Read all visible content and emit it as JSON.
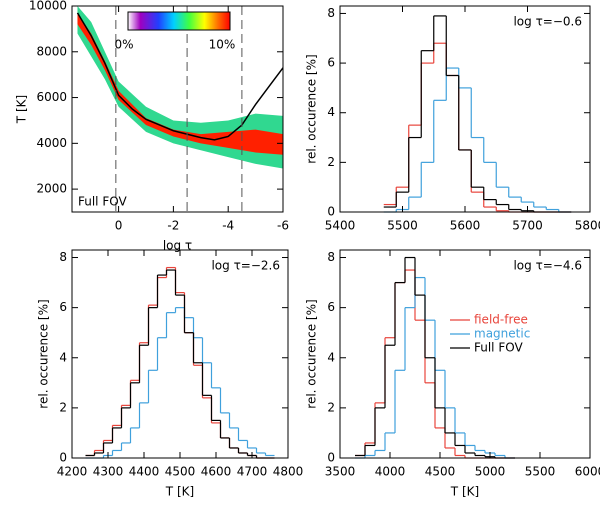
{
  "chart_data": [
    {
      "type": "density",
      "xlabel": "log τ",
      "ylabel": "T [K]",
      "annotation": "Full FOV",
      "xlim": [
        1.7,
        -6
      ],
      "ylim": [
        1000,
        10000
      ],
      "xticks": [
        0,
        -2,
        -4,
        -6
      ],
      "yticks": [
        2000,
        4000,
        6000,
        8000,
        10000
      ],
      "colorbar_labels": [
        "0%",
        "10%"
      ],
      "dashed_x": [
        0.1,
        -2.5,
        -4.5
      ],
      "band": {
        "x": [
          1.5,
          1,
          0.5,
          0,
          -1,
          -2,
          -3,
          -4,
          -5,
          -6
        ],
        "upper": [
          10000,
          9300,
          8000,
          6700,
          5600,
          5000,
          4900,
          5000,
          5300,
          5200
        ],
        "lower": [
          8800,
          7800,
          6800,
          5600,
          4500,
          4000,
          3700,
          3400,
          3100,
          2900
        ],
        "core_upper": [
          9700,
          8800,
          7600,
          6300,
          5100,
          4600,
          4400,
          4500,
          4600,
          4400
        ],
        "core_lower": [
          9200,
          8300,
          7200,
          5900,
          4800,
          4300,
          4000,
          3800,
          3600,
          3500
        ]
      },
      "mean": {
        "color": "#000000",
        "x": [
          1.5,
          1,
          0.5,
          0,
          -0.5,
          -1,
          -2,
          -3,
          -3.5,
          -4,
          -4.5,
          -5,
          -5.5,
          -6
        ],
        "values": [
          9700,
          8700,
          7500,
          6100,
          5500,
          5050,
          4550,
          4250,
          4150,
          4300,
          4800,
          5700,
          6500,
          7300
        ]
      }
    },
    {
      "type": "histogram_steps",
      "title": "log τ=−0.6",
      "ylabel": "rel. occurence [%]",
      "xlim": [
        5400,
        5800
      ],
      "xticks": [
        5400,
        5500,
        5600,
        5700,
        5800
      ],
      "ylim": [
        0,
        8.3
      ],
      "yticks": [
        0,
        2,
        4,
        6,
        8
      ],
      "x": [
        5480,
        5500,
        5520,
        5540,
        5560,
        5580,
        5600,
        5620,
        5640,
        5660,
        5680,
        5700,
        5720,
        5740,
        5760
      ],
      "series": [
        {
          "color": "#e8453c",
          "values": [
            0.3,
            1.0,
            3.5,
            6.0,
            6.8,
            5.5,
            2.5,
            0.8,
            0.2,
            0.05,
            0,
            0,
            0,
            0,
            0
          ]
        },
        {
          "color": "#3fa0dc",
          "values": [
            0,
            0.1,
            0.6,
            2.0,
            4.5,
            5.8,
            5.0,
            3.0,
            2.0,
            1.0,
            0.6,
            0.4,
            0.2,
            0.1,
            0
          ]
        },
        {
          "color": "#000000",
          "values": [
            0.2,
            0.8,
            3.0,
            6.5,
            7.9,
            5.5,
            2.5,
            1.0,
            0.5,
            0.3,
            0.1,
            0.05,
            0,
            0,
            0
          ]
        }
      ]
    },
    {
      "type": "histogram_steps",
      "title": "log τ=−2.6",
      "ylabel": "rel. occurence [%]",
      "xlabel": "T [K]",
      "xlim": [
        4200,
        4800
      ],
      "xticks": [
        4200,
        4300,
        4400,
        4500,
        4600,
        4700,
        4800
      ],
      "ylim": [
        0,
        8.3
      ],
      "yticks": [
        0,
        2,
        4,
        6,
        8
      ],
      "x": [
        4250,
        4275,
        4300,
        4325,
        4350,
        4375,
        4400,
        4425,
        4450,
        4475,
        4500,
        4525,
        4550,
        4575,
        4600,
        4625,
        4650,
        4675,
        4700,
        4725,
        4750
      ],
      "series": [
        {
          "color": "#e8453c",
          "values": [
            0.1,
            0.3,
            0.7,
            1.3,
            2.1,
            3.1,
            4.6,
            6.1,
            7.2,
            7.6,
            6.6,
            5.0,
            3.7,
            2.4,
            1.4,
            0.8,
            0.4,
            0.2,
            0.1,
            0,
            0
          ]
        },
        {
          "color": "#3fa0dc",
          "values": [
            0,
            0,
            0.1,
            0.3,
            0.6,
            1.2,
            2.2,
            3.5,
            4.8,
            5.8,
            6.0,
            5.6,
            4.8,
            3.8,
            2.8,
            1.8,
            1.2,
            0.7,
            0.4,
            0.2,
            0.1
          ]
        },
        {
          "color": "#000000",
          "values": [
            0.1,
            0.2,
            0.6,
            1.2,
            2.0,
            3.0,
            4.5,
            6.0,
            7.3,
            7.5,
            6.5,
            5.0,
            3.8,
            2.5,
            1.5,
            0.8,
            0.4,
            0.2,
            0.1,
            0,
            0
          ]
        }
      ]
    },
    {
      "type": "histogram_steps",
      "title": "log τ=−4.6",
      "ylabel": "rel. occurence [%]",
      "xlabel": "T [K]",
      "xlim": [
        3500,
        6000
      ],
      "xticks": [
        3500,
        4000,
        4500,
        5000,
        5500,
        6000
      ],
      "ylim": [
        0,
        8.3
      ],
      "yticks": [
        0,
        2,
        4,
        6,
        8
      ],
      "x": [
        3700,
        3800,
        3900,
        4000,
        4100,
        4200,
        4300,
        4400,
        4500,
        4600,
        4700,
        4800,
        4900,
        5000,
        5100,
        5200
      ],
      "legend": "right",
      "series": [
        {
          "name": "field-free",
          "color": "#e8453c",
          "values": [
            0.1,
            0.6,
            2.2,
            4.8,
            7.0,
            7.5,
            5.5,
            3.0,
            1.2,
            0.4,
            0.1,
            0,
            0,
            0,
            0,
            0
          ]
        },
        {
          "name": "magnetic",
          "color": "#3fa0dc",
          "values": [
            0,
            0.1,
            0.3,
            1.0,
            3.5,
            6.0,
            7.2,
            5.5,
            3.5,
            2.0,
            1.0,
            0.5,
            0.3,
            0.2,
            0.1,
            0
          ]
        },
        {
          "name": "Full FOV",
          "color": "#000000",
          "values": [
            0.1,
            0.5,
            2.0,
            4.5,
            7.0,
            8.0,
            6.5,
            4.0,
            2.0,
            1.0,
            0.5,
            0.2,
            0.1,
            0.05,
            0,
            0
          ]
        }
      ]
    }
  ]
}
